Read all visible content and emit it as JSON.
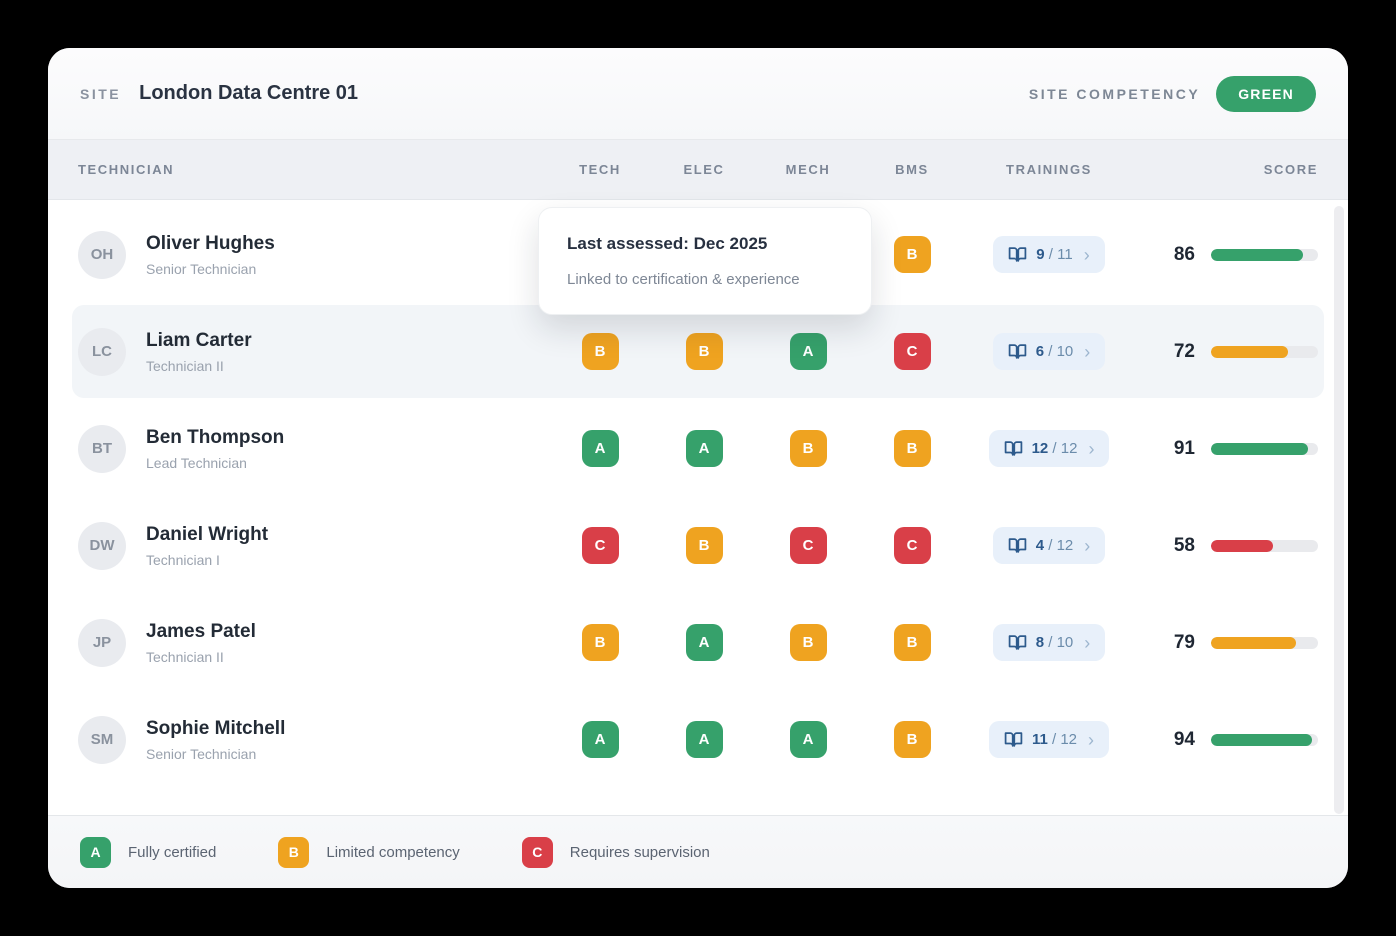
{
  "colors": {
    "grade_a": "#36a16b",
    "grade_b": "#efa320",
    "grade_c": "#d93f48",
    "trainings_blue": "#2d5a8c",
    "trainings_pill_bg": "#e8f0fa",
    "bar_track": "#e9eaed",
    "competency_green": "#36a16b"
  },
  "header": {
    "site_label": "SITE",
    "site_name": "London Data Centre 01",
    "competency_label": "SITE COMPETENCY",
    "competency_value": "GREEN"
  },
  "table": {
    "columns": {
      "technician": "TECHNICIAN",
      "skills": [
        "TECH",
        "ELEC",
        "MECH",
        "BMS"
      ],
      "trainings": "TRAININGS",
      "score": "SCORE"
    }
  },
  "tooltip": {
    "title": "Last assessed: Dec 2025",
    "subtitle": "Linked to certification & experience"
  },
  "rows": [
    {
      "initials": "OH",
      "name": "Oliver Hughes",
      "role": "Senior Technician",
      "grades": [
        null,
        null,
        null,
        "B"
      ],
      "trainings": {
        "completed": "9",
        "total": "11"
      },
      "score": 86,
      "score_level": "green",
      "highlighted": false
    },
    {
      "initials": "LC",
      "name": "Liam Carter",
      "role": "Technician II",
      "grades": [
        "B",
        "B",
        "A",
        "C"
      ],
      "trainings": {
        "completed": "6",
        "total": "10"
      },
      "score": 72,
      "score_level": "amber",
      "highlighted": true
    },
    {
      "initials": "BT",
      "name": "Ben Thompson",
      "role": "Lead Technician",
      "grades": [
        "A",
        "A",
        "B",
        "B"
      ],
      "trainings": {
        "completed": "12",
        "total": "12"
      },
      "score": 91,
      "score_level": "green",
      "highlighted": false
    },
    {
      "initials": "DW",
      "name": "Daniel Wright",
      "role": "Technician I",
      "grades": [
        "C",
        "B",
        "C",
        "C"
      ],
      "trainings": {
        "completed": "4",
        "total": "12"
      },
      "score": 58,
      "score_level": "red",
      "highlighted": false
    },
    {
      "initials": "JP",
      "name": "James Patel",
      "role": "Technician II",
      "grades": [
        "B",
        "A",
        "B",
        "B"
      ],
      "trainings": {
        "completed": "8",
        "total": "10"
      },
      "score": 79,
      "score_level": "amber",
      "highlighted": false
    },
    {
      "initials": "SM",
      "name": "Sophie Mitchell",
      "role": "Senior Technician",
      "grades": [
        "A",
        "A",
        "A",
        "B"
      ],
      "trainings": {
        "completed": "11",
        "total": "12"
      },
      "score": 94,
      "score_level": "green",
      "highlighted": false
    }
  ],
  "legend": [
    {
      "grade": "A",
      "label": "Fully certified"
    },
    {
      "grade": "B",
      "label": "Limited competency"
    },
    {
      "grade": "C",
      "label": "Requires supervision"
    }
  ],
  "trainings_chevron": "›"
}
